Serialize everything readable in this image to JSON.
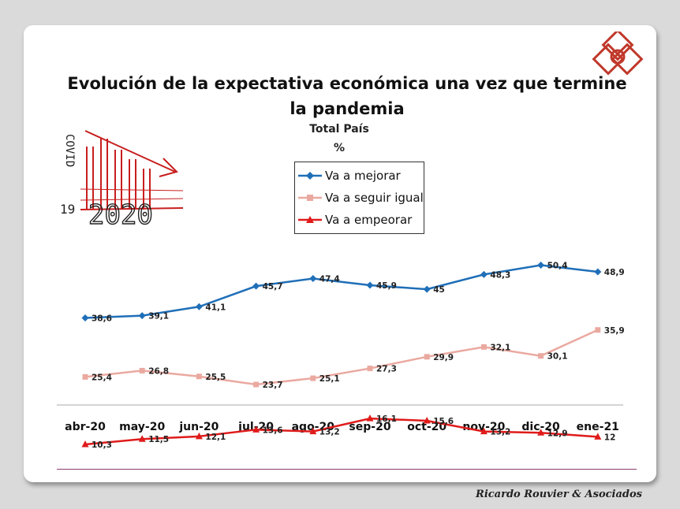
{
  "title": "Evolución de la expectativa económica una vez que termine la pandemia",
  "subtitle": "Total País",
  "unit": "%",
  "brand": "Ricardo Rouvier & Asociados",
  "doodle_text": {
    "covid": "COVID",
    "nineteen": "19",
    "year": "2020"
  },
  "colors": {
    "mejorar": "#1f6fb8",
    "igual": "#eaa9a0",
    "empeorar": "#e01b1b"
  },
  "chart_data": {
    "type": "line",
    "categories": [
      "abr-20",
      "may-20",
      "jun-20",
      "jul-20",
      "ago-20",
      "sep-20",
      "oct-20",
      "nov-20",
      "dic-20",
      "ene-21"
    ],
    "series": [
      {
        "name": "Va a mejorar",
        "values": [
          38.6,
          39.1,
          41.1,
          45.7,
          47.4,
          45.9,
          45,
          48.3,
          50.4,
          48.9
        ],
        "labels": [
          "38,6",
          "39,1",
          "41,1",
          "45,7",
          "47,4",
          "45,9",
          "45",
          "48,3",
          "50,4",
          "48,9"
        ],
        "marker": "diamond",
        "color": "#1f6fb8"
      },
      {
        "name": "Va a seguir igual",
        "values": [
          25.4,
          26.8,
          25.5,
          23.7,
          25.1,
          27.3,
          29.9,
          32.1,
          30.1,
          35.9
        ],
        "labels": [
          "25,4",
          "26,8",
          "25,5",
          "23,7",
          "25,1",
          "27,3",
          "29,9",
          "32,1",
          "30,1",
          "35,9"
        ],
        "marker": "square",
        "color": "#eaa9a0"
      },
      {
        "name": "Va a empeorar",
        "values": [
          10.3,
          11.5,
          12.1,
          13.6,
          13.2,
          16.1,
          15.6,
          13.2,
          12.9,
          12
        ],
        "labels": [
          "10,3",
          "11,5",
          "12,1",
          "13,6",
          "13,2",
          "16,1",
          "15,6",
          "13,2",
          "12,9",
          "12"
        ],
        "marker": "triangle",
        "color": "#e01b1b"
      }
    ],
    "legend_position": "top-center",
    "grid": false
  }
}
